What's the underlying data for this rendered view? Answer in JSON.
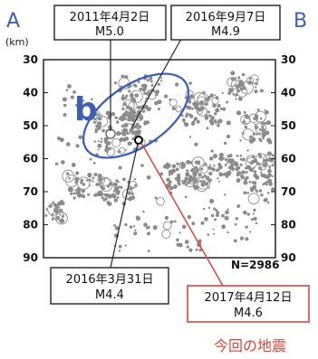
{
  "chart_data": {
    "type": "scatter",
    "corner_labels": {
      "left": "A",
      "right": "B"
    },
    "cluster_label": "b",
    "ylabel": "(km)",
    "ylim": [
      30,
      90
    ],
    "y_ticks": [
      30,
      40,
      50,
      60,
      70,
      80,
      90
    ],
    "y_tick_labels": [
      "30",
      "40",
      "50",
      "60",
      "70",
      "80",
      "90"
    ],
    "count_label": "N=2986",
    "events": [
      {
        "date": "2011年4月2日",
        "magnitude": "M5.0",
        "x": 0.3,
        "depth": 50
      },
      {
        "date": "2016年9月7日",
        "magnitude": "M4.9",
        "x": 0.39,
        "depth": 48
      },
      {
        "date": "2016年3月31日",
        "magnitude": "M4.4",
        "x": 0.36,
        "depth": 52
      },
      {
        "date": "2017年4月12日",
        "magnitude": "M4.6",
        "x": 0.38,
        "depth": 54.5
      }
    ],
    "current_event_caption": "今回の地震",
    "colors": {
      "accent": "#3f5fb0",
      "current": "#e0453a",
      "points": "#8a8a8a",
      "ellipse": "#3a5bbf"
    }
  }
}
